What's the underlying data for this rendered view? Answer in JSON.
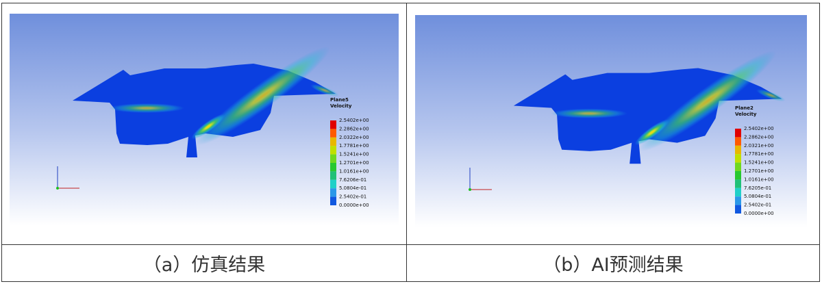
{
  "panels": [
    {
      "legend_title": "Plane5",
      "legend_subtitle": "Velocity",
      "legend_labels": [
        "2.5402e+00",
        "2.2862e+00",
        "2.0322e+00",
        "1.7781e+00",
        "1.5241e+00",
        "1.2701e+00",
        "1.0161e+00",
        "7.6206e-01",
        "5.0804e-01",
        "2.5402e-01",
        "0.0000e+00"
      ],
      "caption": "（a）仿真结果"
    },
    {
      "legend_title": "Plane2",
      "legend_subtitle": "Velocity",
      "legend_labels": [
        "2.5402e+00",
        "2.2862e+00",
        "2.0321e+00",
        "1.7781e+00",
        "1.5241e+00",
        "1.2701e+00",
        "1.0161e+00",
        "7.6205e-01",
        "5.0804e-01",
        "2.5402e-01",
        "0.0000e+00"
      ],
      "caption": "（b）AI预测结果"
    }
  ]
}
